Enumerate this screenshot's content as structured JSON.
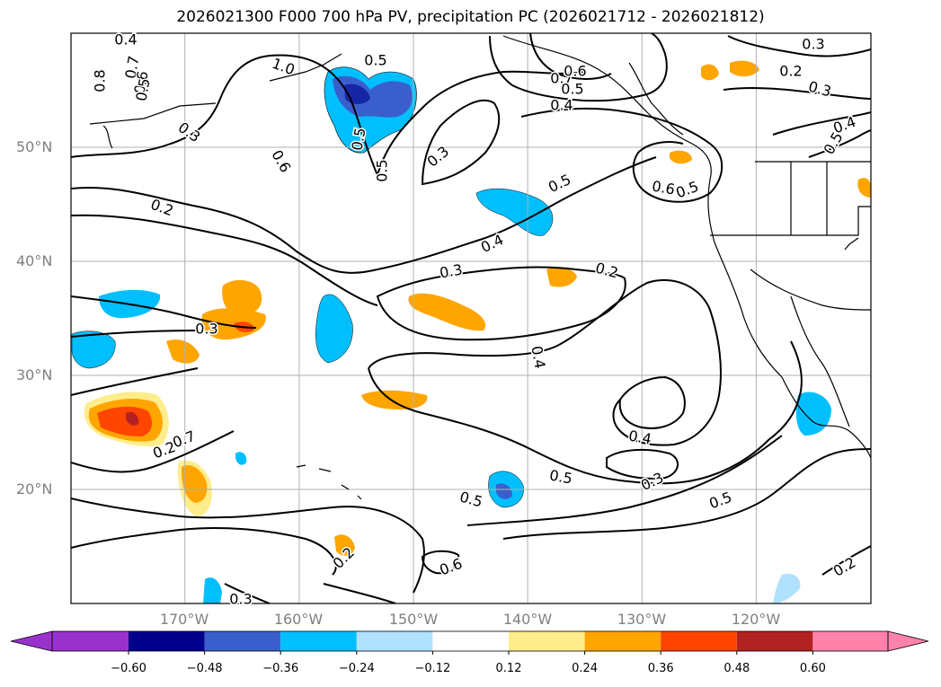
{
  "title": "2026021300 F000 700 hPa PV, precipitation PC (2026021712 - 2026021812)",
  "map": {
    "lon_range": [
      -180,
      -110
    ],
    "lat_range": [
      10,
      60
    ],
    "lat_labels": [
      "20°N",
      "30°N",
      "40°N",
      "50°N"
    ],
    "lon_labels": [
      "170°W",
      "160°W",
      "150°W",
      "140°W",
      "130°W",
      "120°W"
    ],
    "gridlines": true,
    "pv_contour_labels": [
      "0.4",
      "0.8",
      "0.7",
      "0.6",
      "0.5",
      "1.0",
      "0.3",
      "0.2",
      "0.6",
      "0.5",
      "0.3",
      "0.5",
      "0.4",
      "0.3",
      "0.2",
      "0.5",
      "0.6",
      "0.5",
      "0.4",
      "0.3",
      "0.7",
      "0.6",
      "0.5",
      "0.4",
      "0.3",
      "0.4",
      "0.5",
      "0.4",
      "0.5",
      "0.3",
      "0.5",
      "0.5",
      "0.6",
      "0.2",
      "0.2",
      "0.3",
      "0.3",
      "0.2",
      "0.2",
      "0.7",
      "0.5"
    ]
  },
  "colorbar": {
    "tick_labels": [
      "−0.60",
      "−0.48",
      "−0.36",
      "−0.24",
      "−0.12",
      "0.12",
      "0.24",
      "0.36",
      "0.48",
      "0.60"
    ],
    "colors": [
      "#9932cc",
      "#00008b",
      "#3a5fcd",
      "#00bfff",
      "#b0e2ff",
      "#ffffff",
      "#ffec8b",
      "#ffa500",
      "#ff4500",
      "#b22222",
      "#ff82ab"
    ]
  }
}
